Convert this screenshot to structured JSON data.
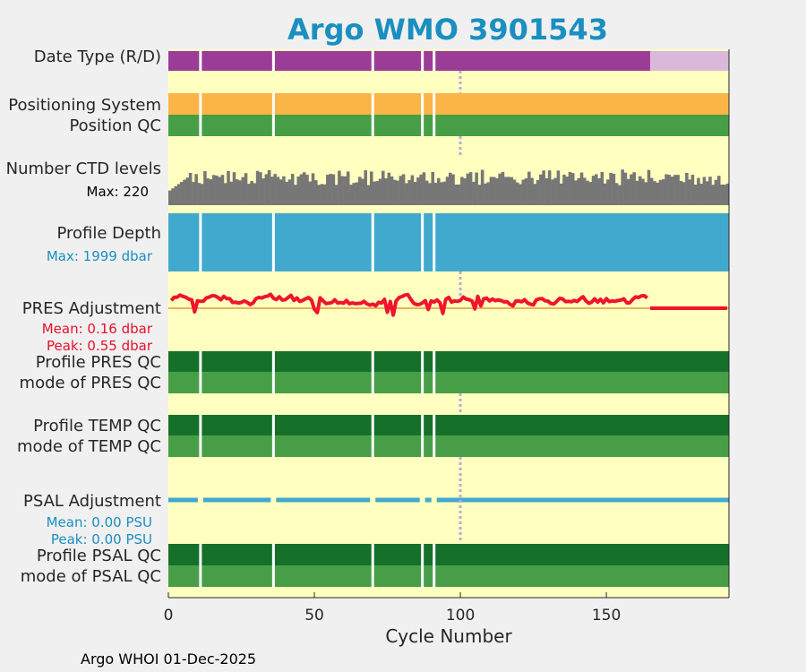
{
  "title": "Argo WMO 3901543",
  "footer": "Argo WHOI 01-Dec-2025",
  "colors": {
    "plot_bg": "#ffffc0",
    "real_time": "#9b3d97",
    "delayed": "#d9b8d9",
    "positioning": "#fbb446",
    "qc_good": "#489e46",
    "qc_profile": "#15702a",
    "ctd_levels": "#777777",
    "depth": "#42a9ce",
    "pres_adj": "#f0142c",
    "pres_zero": "#e39a3a",
    "psal_adj": "#42a9ce",
    "marker": "#b0b0d8",
    "gap": "#ffffff"
  },
  "rows": {
    "date_type": "Date Type (R/D)",
    "positioning": "Positioning System",
    "position_qc": "Position QC",
    "ctd_levels": "Number CTD levels",
    "ctd_max": "Max: 220",
    "depth": "Profile Depth",
    "depth_max": "Max: 1999 dbar",
    "pres_adj": "PRES Adjustment",
    "pres_mean": "Mean: 0.16 dbar",
    "pres_peak": "Peak: 0.55 dbar",
    "pres_qc": "Profile PRES QC",
    "pres_mode": "mode of PRES QC",
    "temp_qc": "Profile TEMP QC",
    "temp_mode": "mode of TEMP QC",
    "psal_adj": "PSAL Adjustment",
    "psal_mean": "Mean: 0.00 PSU",
    "psal_peak": "Peak: 0.00 PSU",
    "psal_qc": "Profile PSAL QC",
    "psal_mode": "mode of PSAL QC"
  },
  "chart_data": {
    "type": "bar",
    "xlabel": "Cycle Number",
    "xlim": [
      0,
      192
    ],
    "xticks": [
      0,
      50,
      100,
      150
    ],
    "cycle_marker": 100,
    "missing_cycles": [
      11,
      36,
      70,
      87,
      91
    ],
    "delayed_mode_from_cycle": 165,
    "pres_adjustment_constant_from_cycle": 165,
    "ctd_levels_max": 220,
    "profile_depth_max_dbar": 1999,
    "pres_adjustment_mean_dbar": 0.16,
    "pres_adjustment_peak_dbar": 0.55,
    "psal_adjustment_mean_psu": 0.0,
    "psal_adjustment_peak_psu": 0.0
  }
}
